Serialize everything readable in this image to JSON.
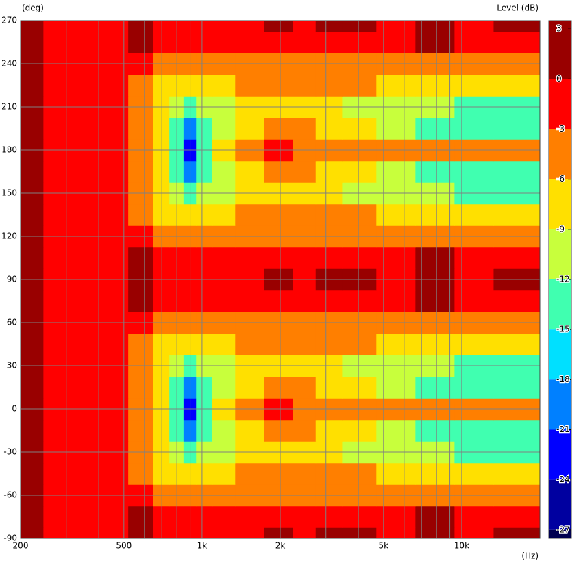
{
  "chart_data": {
    "type": "contour",
    "y_label": "(deg)",
    "x_label": "(Hz)",
    "colorbar_label": "Level  (dB)",
    "log_x": true,
    "grid": true,
    "xlim": [
      200,
      20000
    ],
    "ylim": [
      -90,
      270
    ],
    "xticks": [
      200,
      500,
      {
        "value": 1000,
        "label": "1k"
      },
      {
        "value": 2000,
        "label": "2k"
      },
      {
        "value": 5000,
        "label": "5k"
      },
      {
        "value": 10000,
        "label": "10k"
      }
    ],
    "x_minor_ticks": [
      300,
      400,
      600,
      700,
      800,
      900,
      3000,
      4000,
      6000,
      7000,
      8000,
      9000
    ],
    "yticks": [
      -90,
      -60,
      -30,
      0,
      30,
      60,
      90,
      120,
      150,
      180,
      210,
      240,
      270
    ],
    "x": [
      200,
      300,
      450,
      600,
      700,
      800,
      900,
      1000,
      1200,
      1500,
      2000,
      2500,
      3000,
      4000,
      5500,
      8000,
      11000,
      16000
    ],
    "y": [
      -90,
      -75,
      -60,
      -45,
      -30,
      -15,
      0,
      15,
      30,
      45,
      60,
      75,
      90,
      105,
      120,
      135,
      150,
      165,
      180,
      195,
      210,
      225,
      240,
      255,
      270
    ],
    "z": [
      [
        1,
        -1,
        -1,
        0.5,
        -1,
        -1,
        -1,
        -1,
        -1,
        -1,
        0.5,
        -1,
        0.5,
        0.5,
        -1,
        0.5,
        -1,
        0.5
      ],
      [
        1,
        -1,
        -1,
        0.3,
        -1,
        -1,
        -1,
        -1,
        -1,
        -1,
        -1,
        -1,
        -1,
        -1,
        -1,
        0.3,
        -1,
        -1
      ],
      [
        1,
        -1,
        -1,
        -1.5,
        -3.5,
        -3.5,
        -3.5,
        -3.5,
        -3.2,
        -3.2,
        -3.5,
        -3.5,
        -3.5,
        -3.5,
        -3.5,
        -3.5,
        -3.5,
        -3.5
      ],
      [
        1,
        -1,
        -1.5,
        -3.5,
        -6.5,
        -7,
        -7,
        -6.5,
        -6.5,
        -5,
        -5,
        -5,
        -5.5,
        -5.5,
        -6.5,
        -6.5,
        -6.5,
        -6.5
      ],
      [
        1,
        -1,
        -2,
        -4,
        -8,
        -11,
        -13,
        -11,
        -9.5,
        -8,
        -7,
        -7.5,
        -9,
        -9.5,
        -10,
        -12,
        -13,
        -14
      ],
      [
        1,
        -1,
        -2,
        -4.5,
        -8,
        -13,
        -19,
        -13,
        -9.5,
        -6.5,
        -4,
        -5,
        -6.5,
        -9,
        -10.5,
        -13,
        -14,
        -15
      ],
      [
        1,
        -1,
        -2,
        -4.5,
        -8,
        -13,
        -23,
        -13,
        -9,
        -4,
        -2,
        -3.5,
        -4,
        -5,
        -5,
        -4,
        -4,
        -4
      ],
      [
        1,
        -1,
        -2,
        -4.5,
        -8,
        -13,
        -19,
        -13,
        -9.5,
        -6.5,
        -4,
        -5,
        -6.5,
        -9,
        -10.5,
        -13,
        -14,
        -15
      ],
      [
        1,
        -1,
        -2,
        -4,
        -8,
        -11,
        -13,
        -11,
        -9.5,
        -8,
        -7,
        -7.5,
        -9,
        -9.5,
        -10,
        -12,
        -13,
        -14
      ],
      [
        1,
        -1,
        -1.5,
        -3.5,
        -6.5,
        -7,
        -7,
        -6.5,
        -6.5,
        -5,
        -5,
        -5,
        -5.5,
        -5.5,
        -6.5,
        -6.5,
        -6.5,
        -6.5
      ],
      [
        1,
        -1,
        -1,
        -1.5,
        -3.5,
        -3.5,
        -3.5,
        -3.5,
        -3.2,
        -3.2,
        -3.5,
        -3.5,
        -3.5,
        -3.5,
        -3.5,
        -3.5,
        -3.5,
        -3.5
      ],
      [
        1,
        -1,
        -1,
        0.3,
        -1,
        -1,
        -1,
        -1,
        -1,
        -1,
        -1,
        -1,
        -1,
        -1,
        -1,
        0.3,
        -1,
        -1
      ],
      [
        1,
        -1,
        -1,
        0.5,
        -1,
        -1,
        -1,
        -1,
        -1,
        -1,
        0.5,
        -1,
        0.5,
        0.5,
        -1,
        0.5,
        -1,
        0.5
      ],
      [
        1,
        -1,
        -1,
        0.3,
        -1,
        -1,
        -1,
        -1,
        -1,
        -1,
        -1,
        -1,
        -1,
        -1,
        -1,
        0.3,
        -1,
        -1
      ],
      [
        1,
        -1,
        -1,
        -1.5,
        -3.5,
        -3.5,
        -3.5,
        -3.5,
        -3.2,
        -3.2,
        -3.5,
        -3.5,
        -3.5,
        -3.5,
        -3.5,
        -3.5,
        -3.5,
        -3.5
      ],
      [
        1,
        -1,
        -1.5,
        -3.5,
        -6.5,
        -7,
        -7,
        -6.5,
        -6.5,
        -5,
        -5,
        -5,
        -5.5,
        -5.5,
        -6.5,
        -6.5,
        -6.5,
        -6.5
      ],
      [
        1,
        -1,
        -2,
        -4,
        -8,
        -11,
        -13,
        -11,
        -9.5,
        -8,
        -7,
        -7.5,
        -9,
        -9.5,
        -10,
        -12,
        -13,
        -14
      ],
      [
        1,
        -1,
        -2,
        -4.5,
        -8,
        -13,
        -19,
        -13,
        -9.5,
        -6.5,
        -4,
        -5,
        -6.5,
        -9,
        -10.5,
        -13,
        -14,
        -15
      ],
      [
        1,
        -1,
        -2,
        -4.5,
        -8,
        -13,
        -23,
        -13,
        -9,
        -4,
        -2,
        -3.5,
        -4,
        -5,
        -5,
        -4,
        -4,
        -4
      ],
      [
        1,
        -1,
        -2,
        -4.5,
        -8,
        -13,
        -19,
        -13,
        -9.5,
        -6.5,
        -4,
        -5,
        -6.5,
        -9,
        -10.5,
        -13,
        -14,
        -15
      ],
      [
        1,
        -1,
        -2,
        -4,
        -8,
        -11,
        -13,
        -11,
        -9.5,
        -8,
        -7,
        -7.5,
        -9,
        -9.5,
        -10,
        -12,
        -13,
        -14
      ],
      [
        1,
        -1,
        -1.5,
        -3.5,
        -6.5,
        -7,
        -7,
        -6.5,
        -6.5,
        -5,
        -5,
        -5,
        -5.5,
        -5.5,
        -6.5,
        -6.5,
        -6.5,
        -6.5
      ],
      [
        1,
        -1,
        -1,
        -1.5,
        -3.5,
        -3.5,
        -3.5,
        -3.5,
        -3.2,
        -3.2,
        -3.5,
        -3.5,
        -3.5,
        -3.5,
        -3.5,
        -3.5,
        -3.5,
        -3.5
      ],
      [
        1,
        -1,
        -1,
        0.3,
        -1,
        -1,
        -1,
        -1,
        -1,
        -1,
        -1,
        -1,
        -1,
        -1,
        -1,
        0.3,
        -1,
        -1
      ],
      [
        1,
        -1,
        -1,
        0.5,
        -1,
        -1,
        -1,
        -1,
        -1,
        -1,
        0.5,
        -1,
        0.5,
        0.5,
        -1,
        0.5,
        -1,
        0.5
      ]
    ],
    "colorbar": {
      "lim": [
        -27.5,
        3.5
      ],
      "ticks": [
        3,
        0,
        -3,
        -6,
        -9,
        -12,
        -15,
        -18,
        -21,
        -24,
        -27
      ],
      "bounds": [
        0,
        -3,
        -6,
        -9,
        -12,
        -15,
        -18,
        -21,
        -24,
        -27
      ],
      "colors": [
        "#990000",
        "#ff0000",
        "#ff7f00",
        "#ffe000",
        "#c8ff3c",
        "#40ffb0",
        "#00e0ff",
        "#0080ff",
        "#0000ff",
        "#0000a0",
        "#000050"
      ]
    }
  }
}
